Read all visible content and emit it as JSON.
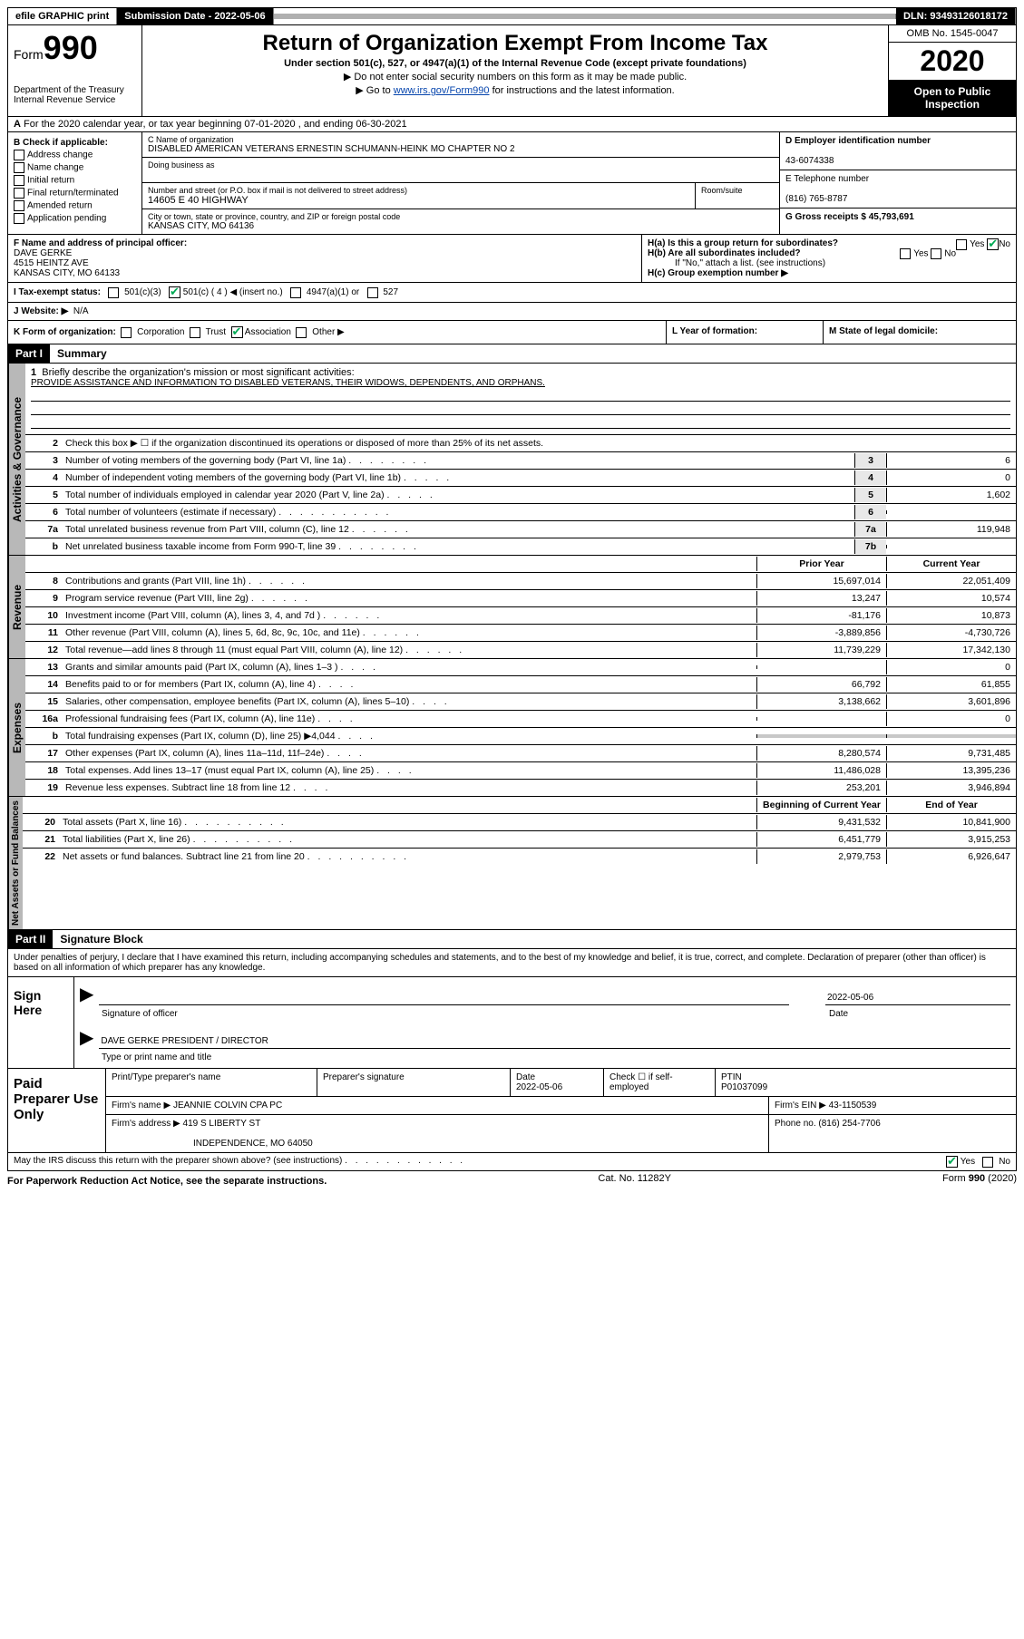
{
  "meta": {
    "efile_label": "efile GRAPHIC print",
    "submission_label": "Submission Date - 2022-05-06",
    "dln_label": "DLN: 93493126018172",
    "form_word": "Form",
    "form_num": "990",
    "dept": "Department of the Treasury",
    "irs": "Internal Revenue Service",
    "title": "Return of Organization Exempt From Income Tax",
    "subtitle": "Under section 501(c), 527, or 4947(a)(1) of the Internal Revenue Code (except private foundations)",
    "note1": "▶ Do not enter social security numbers on this form as it may be made public.",
    "note2_pre": "▶ Go to ",
    "note2_link": "www.irs.gov/Form990",
    "note2_post": " for instructions and the latest information.",
    "omb": "OMB No. 1545-0047",
    "year": "2020",
    "open_public": "Open to Public Inspection"
  },
  "section_a": "For the 2020 calendar year, or tax year beginning 07-01-2020    , and ending 06-30-2021",
  "box_b": {
    "header": "B Check if applicable:",
    "items": [
      "Address change",
      "Name change",
      "Initial return",
      "Final return/terminated",
      "Amended return",
      "Application pending"
    ]
  },
  "box_c": {
    "label": "C Name of organization",
    "name": "DISABLED AMERICAN VETERANS ERNESTIN SCHUMANN-HEINK MO CHAPTER NO 2",
    "dba_label": "Doing business as",
    "addr_label": "Number and street (or P.O. box if mail is not delivered to street address)",
    "room_label": "Room/suite",
    "addr": "14605 E 40 HIGHWAY",
    "city_label": "City or town, state or province, country, and ZIP or foreign postal code",
    "city": "KANSAS CITY, MO  64136"
  },
  "box_d": {
    "label": "D Employer identification number",
    "value": "43-6074338"
  },
  "box_e": {
    "label": "E Telephone number",
    "value": "(816) 765-8787"
  },
  "box_g": {
    "label": "G Gross receipts $ 45,793,691"
  },
  "box_f": {
    "label": "F Name and address of principal officer:",
    "name": "DAVE GERKE",
    "addr1": "4515 HEINTZ AVE",
    "addr2": "KANSAS CITY, MO  64133"
  },
  "box_h": {
    "ha": "H(a)  Is this a group return for subordinates?",
    "hb": "H(b)  Are all subordinates included?",
    "hb_note": "If \"No,\" attach a list. (see instructions)",
    "hc": "H(c)  Group exemption number ▶",
    "yes": "Yes",
    "no": "No"
  },
  "box_i": {
    "label": "I   Tax-exempt status:",
    "opts": [
      "501(c)(3)",
      "501(c) ( 4 ) ◀ (insert no.)",
      "4947(a)(1) or",
      "527"
    ]
  },
  "box_j": {
    "label": "J   Website: ▶",
    "value": "N/A"
  },
  "box_k": {
    "label": "K Form of organization:",
    "opts": [
      "Corporation",
      "Trust",
      "Association",
      "Other ▶"
    ]
  },
  "box_l": {
    "label": "L Year of formation:"
  },
  "box_m": {
    "label": "M State of legal domicile:"
  },
  "part1": {
    "tag": "Part I",
    "title": "Summary"
  },
  "governance": {
    "side": "Activities & Governance",
    "l1_label": "Briefly describe the organization's mission or most significant activities:",
    "l1_text": "PROVIDE ASSISTANCE AND INFORMATION TO DISABLED VETERANS, THEIR WIDOWS, DEPENDENTS, AND ORPHANS.",
    "l2": "Check this box ▶ ☐  if the organization discontinued its operations or disposed of more than 25% of its net assets.",
    "l3": "Number of voting members of the governing body (Part VI, line 1a)",
    "l3v": "6",
    "l4": "Number of independent voting members of the governing body (Part VI, line 1b)",
    "l4v": "0",
    "l5": "Total number of individuals employed in calendar year 2020 (Part V, line 2a)",
    "l5v": "1,602",
    "l6": "Total number of volunteers (estimate if necessary)",
    "l6v": "",
    "l7a": "Total unrelated business revenue from Part VIII, column (C), line 12",
    "l7av": "119,948",
    "l7b": "Net unrelated business taxable income from Form 990-T, line 39",
    "l7bv": ""
  },
  "headers": {
    "prior": "Prior Year",
    "current": "Current Year",
    "beg": "Beginning of Current Year",
    "end": "End of Year"
  },
  "revenue": {
    "side": "Revenue",
    "rows": [
      {
        "n": "8",
        "t": "Contributions and grants (Part VIII, line 1h)",
        "p": "15,697,014",
        "c": "22,051,409"
      },
      {
        "n": "9",
        "t": "Program service revenue (Part VIII, line 2g)",
        "p": "13,247",
        "c": "10,574"
      },
      {
        "n": "10",
        "t": "Investment income (Part VIII, column (A), lines 3, 4, and 7d )",
        "p": "-81,176",
        "c": "10,873"
      },
      {
        "n": "11",
        "t": "Other revenue (Part VIII, column (A), lines 5, 6d, 8c, 9c, 10c, and 11e)",
        "p": "-3,889,856",
        "c": "-4,730,726"
      },
      {
        "n": "12",
        "t": "Total revenue—add lines 8 through 11 (must equal Part VIII, column (A), line 12)",
        "p": "11,739,229",
        "c": "17,342,130"
      }
    ]
  },
  "expenses": {
    "side": "Expenses",
    "rows": [
      {
        "n": "13",
        "t": "Grants and similar amounts paid (Part IX, column (A), lines 1–3 )",
        "p": "",
        "c": "0"
      },
      {
        "n": "14",
        "t": "Benefits paid to or for members (Part IX, column (A), line 4)",
        "p": "66,792",
        "c": "61,855"
      },
      {
        "n": "15",
        "t": "Salaries, other compensation, employee benefits (Part IX, column (A), lines 5–10)",
        "p": "3,138,662",
        "c": "3,601,896"
      },
      {
        "n": "16a",
        "t": "Professional fundraising fees (Part IX, column (A), line 11e)",
        "p": "",
        "c": "0"
      },
      {
        "n": "b",
        "t": "Total fundraising expenses (Part IX, column (D), line 25) ▶4,044",
        "p": "__SHADE__",
        "c": "__SHADE__"
      },
      {
        "n": "17",
        "t": "Other expenses (Part IX, column (A), lines 11a–11d, 11f–24e)",
        "p": "8,280,574",
        "c": "9,731,485"
      },
      {
        "n": "18",
        "t": "Total expenses. Add lines 13–17 (must equal Part IX, column (A), line 25)",
        "p": "11,486,028",
        "c": "13,395,236"
      },
      {
        "n": "19",
        "t": "Revenue less expenses. Subtract line 18 from line 12",
        "p": "253,201",
        "c": "3,946,894"
      }
    ]
  },
  "netassets": {
    "side": "Net Assets or Fund Balances",
    "rows": [
      {
        "n": "20",
        "t": "Total assets (Part X, line 16)",
        "p": "9,431,532",
        "c": "10,841,900"
      },
      {
        "n": "21",
        "t": "Total liabilities (Part X, line 26)",
        "p": "6,451,779",
        "c": "3,915,253"
      },
      {
        "n": "22",
        "t": "Net assets or fund balances. Subtract line 21 from line 20",
        "p": "2,979,753",
        "c": "6,926,647"
      }
    ]
  },
  "part2": {
    "tag": "Part II",
    "title": "Signature Block",
    "text": "Under penalties of perjury, I declare that I have examined this return, including accompanying schedules and statements, and to the best of my knowledge and belief, it is true, correct, and complete. Declaration of preparer (other than officer) is based on all information of which preparer has any knowledge."
  },
  "sign": {
    "label": "Sign Here",
    "sig_of_officer": "Signature of officer",
    "date": "Date",
    "date_val": "2022-05-06",
    "name": "DAVE GERKE  PRESIDENT / DIRECTOR",
    "type_name": "Type or print name and title"
  },
  "prep": {
    "label": "Paid Preparer Use Only",
    "h1": "Print/Type preparer's name",
    "h2": "Preparer's signature",
    "h3": "Date",
    "h3v": "2022-05-06",
    "h4": "Check ☐ if self-employed",
    "h5": "PTIN",
    "h5v": "P01037099",
    "firm_name_l": "Firm's name    ▶",
    "firm_name": "JEANNIE COLVIN CPA PC",
    "firm_ein_l": "Firm's EIN ▶",
    "firm_ein": "43-1150539",
    "firm_addr_l": "Firm's address ▶",
    "firm_addr1": "419 S LIBERTY ST",
    "firm_addr2": "INDEPENDENCE, MO  64050",
    "phone_l": "Phone no.",
    "phone": "(816) 254-7706"
  },
  "discuss": {
    "text": "May the IRS discuss this return with the preparer shown above? (see instructions)",
    "yes": "Yes",
    "no": "No"
  },
  "footer": {
    "left": "For Paperwork Reduction Act Notice, see the separate instructions.",
    "mid": "Cat. No. 11282Y",
    "right": "Form 990 (2020)"
  }
}
